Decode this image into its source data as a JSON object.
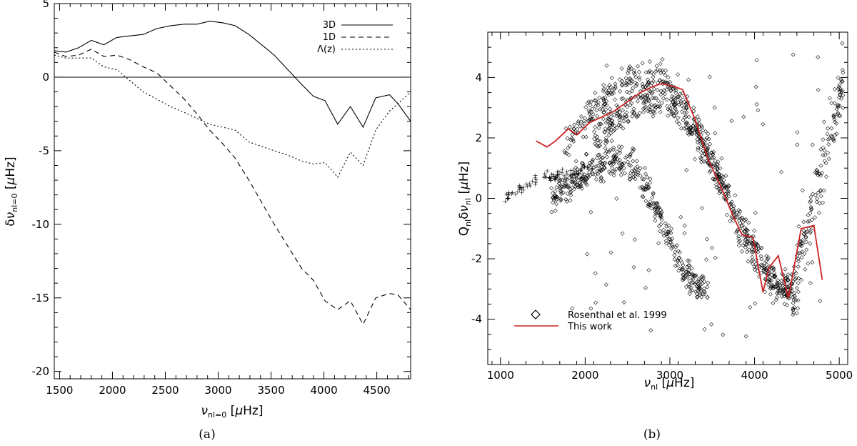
{
  "chart_data": [
    {
      "type": "line",
      "panel": "(a)",
      "xlabel": "ν_nl=0 [μHz]",
      "ylabel": "δν_nl=0 [μHz]",
      "xlim": [
        1450,
        4820
      ],
      "ylim": [
        -20.5,
        5.0
      ],
      "xticks": [
        1500,
        2000,
        2500,
        3000,
        3500,
        4000,
        4500
      ],
      "yticks": [
        5,
        0,
        -5,
        -10,
        -15,
        -20
      ],
      "reference_line_y": 0,
      "legend_position": "top-right",
      "series": [
        {
          "name": "3D",
          "style": "solid",
          "x": [
            1450,
            1560,
            1680,
            1800,
            1920,
            2040,
            2160,
            2290,
            2420,
            2550,
            2680,
            2800,
            2920,
            3040,
            3160,
            3290,
            3410,
            3530,
            3660,
            3790,
            3900,
            4010,
            4130,
            4250,
            4370,
            4490,
            4620,
            4700,
            4820
          ],
          "y": [
            1.8,
            1.7,
            2.0,
            2.5,
            2.2,
            2.7,
            2.8,
            2.9,
            3.3,
            3.5,
            3.6,
            3.6,
            3.8,
            3.7,
            3.5,
            2.9,
            2.2,
            1.5,
            0.5,
            -0.5,
            -1.3,
            -1.6,
            -3.2,
            -2.0,
            -3.4,
            -1.4,
            -1.2,
            -1.8,
            -3.0
          ]
        },
        {
          "name": "1D",
          "style": "dashed",
          "x": [
            1450,
            1560,
            1680,
            1800,
            1920,
            2040,
            2160,
            2290,
            2420,
            2550,
            2680,
            2800,
            2920,
            3040,
            3160,
            3290,
            3410,
            3530,
            3660,
            3790,
            3900,
            4010,
            4130,
            4250,
            4370,
            4490,
            4620,
            4700,
            4820
          ],
          "y": [
            1.7,
            1.4,
            1.5,
            1.9,
            1.4,
            1.5,
            1.2,
            0.7,
            0.3,
            -0.6,
            -1.5,
            -2.5,
            -3.6,
            -4.5,
            -5.5,
            -7.0,
            -8.5,
            -10.0,
            -11.5,
            -13.0,
            -13.8,
            -15.2,
            -15.8,
            -15.2,
            -16.8,
            -15.0,
            -14.7,
            -14.8,
            -15.8
          ]
        },
        {
          "name": "Λ(z)",
          "style": "dotted",
          "x": [
            1450,
            1560,
            1680,
            1800,
            1920,
            2040,
            2160,
            2290,
            2420,
            2550,
            2680,
            2800,
            2920,
            3040,
            3160,
            3290,
            3410,
            3530,
            3660,
            3790,
            3900,
            4010,
            4130,
            4250,
            4370,
            4490,
            4620,
            4700,
            4820
          ],
          "y": [
            1.5,
            1.3,
            1.3,
            1.3,
            0.7,
            0.5,
            -0.2,
            -1.0,
            -1.5,
            -2.0,
            -2.4,
            -2.8,
            -3.2,
            -3.4,
            -3.6,
            -4.4,
            -4.7,
            -5.0,
            -5.3,
            -5.7,
            -5.9,
            -5.8,
            -6.8,
            -5.1,
            -6.0,
            -3.6,
            -2.3,
            -1.8,
            -1.0
          ]
        }
      ],
      "caption": "(a)"
    },
    {
      "type": "scatter",
      "panel": "(b)",
      "xlabel": "ν_nl [μHz]",
      "ylabel": "Q_nl δν_nl [μHz]",
      "xlim": [
        850,
        5100
      ],
      "ylim": [
        -5.5,
        5.5
      ],
      "xticks": [
        1000,
        2000,
        3000,
        4000,
        5000
      ],
      "yticks": [
        4,
        2,
        0,
        -2,
        -4
      ],
      "legend_position": "bottom-left",
      "series": [
        {
          "name": "Rosenthal et al. 1999",
          "style": "diamond markers",
          "color": "#000000",
          "ridges": [
            {
              "x_start": 1750,
              "x_peak": 2800,
              "peak": 4.0,
              "x_end": 4450,
              "end": -3.2
            },
            {
              "x_start": 2100,
              "x_peak": 2850,
              "peak": 3.2,
              "x_end": 4500,
              "end": -3.0
            },
            {
              "x_start": 1600,
              "x_peak": 2400,
              "peak": 1.2,
              "x_end": 3450,
              "end": -3.0
            },
            {
              "x_start": 1050,
              "x_peak": 1800,
              "peak": 0.8,
              "x_end": 2100,
              "end": 1.0
            }
          ]
        },
        {
          "name": "This work",
          "style": "solid",
          "color": "#cc2222",
          "x": [
            1420,
            1550,
            1650,
            1800,
            1900,
            2050,
            2200,
            2350,
            2500,
            2650,
            2800,
            2900,
            3050,
            3150,
            3300,
            3450,
            3600,
            3750,
            3850,
            3980,
            4100,
            4170,
            4280,
            4400,
            4550,
            4700,
            4800
          ],
          "y": [
            1.9,
            1.7,
            1.9,
            2.3,
            2.1,
            2.5,
            2.7,
            2.9,
            3.2,
            3.5,
            3.7,
            3.8,
            3.7,
            3.6,
            2.6,
            1.3,
            0.4,
            -0.6,
            -1.2,
            -1.3,
            -3.1,
            -2.3,
            -1.9,
            -3.3,
            -1.0,
            -0.9,
            -2.7
          ]
        }
      ],
      "caption": "(b)"
    }
  ],
  "panel_a": {
    "xlabel": "νnl=0 [μHz]",
    "ylabel": "δνnl=0 [μHz]",
    "legend": [
      "3D",
      "1D",
      "Λ(z)"
    ],
    "caption": "(a)"
  },
  "panel_b": {
    "xlabel": "νnl [μHz]",
    "ylabel": "Qnlδνnl [μHz]",
    "legend": [
      "Rosenthal et al. 1999",
      "This work"
    ],
    "caption": "(b)"
  }
}
